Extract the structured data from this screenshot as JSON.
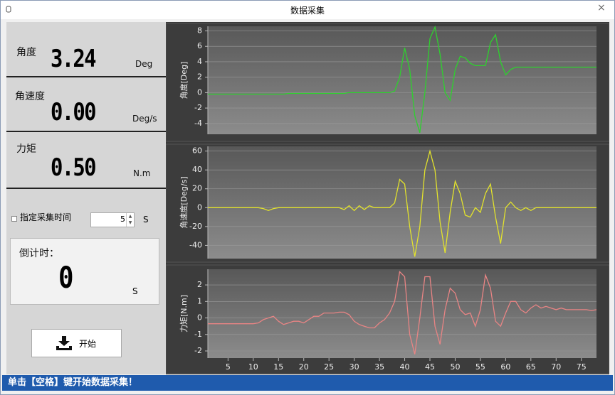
{
  "window": {
    "title": "数据采集",
    "close": "×"
  },
  "readouts": [
    {
      "label": "角度",
      "value": "3.24",
      "unit": "Deg"
    },
    {
      "label": "角速度",
      "value": "0.00",
      "unit": "Deg/s"
    },
    {
      "label": "力矩",
      "value": "0.50",
      "unit": "N.m"
    }
  ],
  "timer": {
    "checkbox_label": "指定采集时间",
    "spinner_value": "5",
    "spinner_unit": "S",
    "countdown_label": "倒计时：",
    "countdown_value": "0",
    "countdown_unit": "S"
  },
  "button": {
    "label": "开始"
  },
  "status": {
    "text": "单击【空格】键开始数据采集！"
  },
  "chart_data": [
    {
      "type": "line",
      "y_label": "角度[Deg]",
      "color": "#2ed12e",
      "x": [
        1,
        2,
        3,
        4,
        5,
        6,
        7,
        8,
        9,
        10,
        11,
        12,
        13,
        14,
        15,
        16,
        17,
        18,
        19,
        20,
        21,
        22,
        23,
        24,
        25,
        26,
        27,
        28,
        29,
        30,
        31,
        32,
        33,
        34,
        35,
        36,
        37,
        38,
        39,
        40,
        41,
        42,
        43,
        44,
        45,
        46,
        47,
        48,
        49,
        50,
        51,
        52,
        53,
        54,
        55,
        56,
        57,
        58,
        59,
        60,
        61,
        62,
        63,
        64,
        65,
        66,
        67,
        68,
        69,
        70,
        71,
        72,
        73,
        74,
        75,
        76,
        77,
        78
      ],
      "values": [
        -0.2,
        -0.2,
        -0.2,
        -0.2,
        -0.2,
        -0.2,
        -0.2,
        -0.2,
        -0.2,
        -0.2,
        -0.2,
        -0.2,
        -0.2,
        -0.2,
        -0.2,
        -0.2,
        -0.1,
        -0.1,
        -0.1,
        -0.1,
        -0.1,
        -0.1,
        -0.1,
        -0.1,
        -0.1,
        -0.1,
        -0.1,
        -0.1,
        0,
        0,
        0,
        0,
        0,
        0,
        0,
        0,
        0,
        0.2,
        2,
        5.8,
        3,
        -3,
        -5.2,
        0,
        7,
        8.5,
        5,
        0,
        -1,
        3,
        4.7,
        4.5,
        3.8,
        3.5,
        3.5,
        3.5,
        6.5,
        7.5,
        4,
        2.3,
        3,
        3.3,
        3.3,
        3.3,
        3.3,
        3.3,
        3.3,
        3.3,
        3.3,
        3.3,
        3.3,
        3.3,
        3.3,
        3.3,
        3.3,
        3.3,
        3.3,
        3.3
      ],
      "xlim": [
        1,
        78
      ],
      "ylim": [
        -5.4,
        8.6
      ],
      "yticks": [
        -4,
        -2,
        0,
        2,
        4,
        6,
        8
      ],
      "grid": true
    },
    {
      "type": "line",
      "y_label": "角速度[Deg/s]",
      "color": "#e3e32c",
      "x": [
        1,
        2,
        3,
        4,
        5,
        6,
        7,
        8,
        9,
        10,
        11,
        12,
        13,
        14,
        15,
        16,
        17,
        18,
        19,
        20,
        21,
        22,
        23,
        24,
        25,
        26,
        27,
        28,
        29,
        30,
        31,
        32,
        33,
        34,
        35,
        36,
        37,
        38,
        39,
        40,
        41,
        42,
        43,
        44,
        45,
        46,
        47,
        48,
        49,
        50,
        51,
        52,
        53,
        54,
        55,
        56,
        57,
        58,
        59,
        60,
        61,
        62,
        63,
        64,
        65,
        66,
        67,
        68,
        69,
        70,
        71,
        72,
        73,
        74,
        75,
        76,
        77,
        78
      ],
      "values": [
        0,
        0,
        0,
        0,
        0,
        0,
        0,
        0,
        0,
        0,
        0,
        -1,
        -3,
        -1,
        0,
        0,
        0,
        0,
        0,
        0,
        0,
        0,
        0,
        0,
        0,
        0,
        0,
        -2,
        2,
        -3,
        2,
        -2,
        2,
        0,
        0,
        0,
        0,
        5,
        30,
        25,
        -20,
        -52,
        -20,
        40,
        60,
        40,
        -15,
        -48,
        -5,
        28,
        15,
        -8,
        -10,
        0,
        -5,
        15,
        25,
        -10,
        -38,
        0,
        6,
        0,
        -3,
        0,
        -3,
        0,
        0,
        0,
        0,
        0,
        0,
        0,
        0,
        0,
        0,
        0,
        0,
        0
      ],
      "xlim": [
        1,
        78
      ],
      "ylim": [
        -54,
        65
      ],
      "yticks": [
        -40,
        -20,
        0,
        20,
        40,
        60
      ],
      "grid": true
    },
    {
      "type": "line",
      "y_label": "力矩[N.m]",
      "color": "#e88484",
      "x": [
        1,
        2,
        3,
        4,
        5,
        6,
        7,
        8,
        9,
        10,
        11,
        12,
        13,
        14,
        15,
        16,
        17,
        18,
        19,
        20,
        21,
        22,
        23,
        24,
        25,
        26,
        27,
        28,
        29,
        30,
        31,
        32,
        33,
        34,
        35,
        36,
        37,
        38,
        39,
        40,
        41,
        42,
        43,
        44,
        45,
        46,
        47,
        48,
        49,
        50,
        51,
        52,
        53,
        54,
        55,
        56,
        57,
        58,
        59,
        60,
        61,
        62,
        63,
        64,
        65,
        66,
        67,
        68,
        69,
        70,
        71,
        72,
        73,
        74,
        75,
        76,
        77,
        78
      ],
      "values": [
        -0.35,
        -0.35,
        -0.35,
        -0.35,
        -0.35,
        -0.35,
        -0.35,
        -0.35,
        -0.35,
        -0.35,
        -0.3,
        -0.1,
        0,
        0.1,
        -0.2,
        -0.4,
        -0.3,
        -0.2,
        -0.2,
        -0.3,
        -0.1,
        0.1,
        0.1,
        0.3,
        0.3,
        0.3,
        0.35,
        0.35,
        0.2,
        -0.2,
        -0.4,
        -0.5,
        -0.6,
        -0.6,
        -0.3,
        -0.1,
        0.3,
        1.0,
        2.8,
        2.5,
        -1.0,
        -2.2,
        0,
        2.5,
        2.5,
        -0.5,
        -1.6,
        0.5,
        1.8,
        1.5,
        0.5,
        0.2,
        0.3,
        -0.5,
        0.5,
        2.6,
        1.8,
        -0.2,
        -0.5,
        0.3,
        1.0,
        1.0,
        0.5,
        0.3,
        0.6,
        0.8,
        0.6,
        0.7,
        0.6,
        0.5,
        0.6,
        0.5,
        0.5,
        0.5,
        0.5,
        0.5,
        0.45,
        0.5
      ],
      "xlim": [
        1,
        78
      ],
      "ylim": [
        -2.43,
        2.95
      ],
      "yticks": [
        -2,
        -1,
        0,
        1,
        2
      ],
      "xticks": [
        5,
        10,
        15,
        20,
        25,
        30,
        35,
        40,
        45,
        50,
        55,
        60,
        65,
        70,
        75
      ],
      "grid": true
    }
  ]
}
